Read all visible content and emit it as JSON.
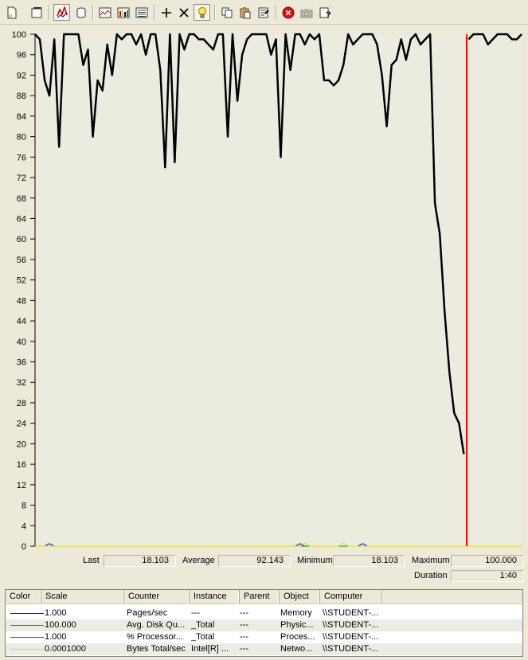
{
  "toolbar": {
    "buttons": [
      {
        "name": "new-counter-set-button",
        "icon": "new-document-icon"
      },
      {
        "name": "clear-display-button",
        "icon": "clear-display-icon"
      },
      {
        "name": "view-current-activity-button",
        "icon": "current-activity-icon",
        "pressed": true
      },
      {
        "name": "view-log-data-button",
        "icon": "database-icon"
      },
      {
        "name": "view-graph-button",
        "icon": "graph-icon"
      },
      {
        "name": "view-histogram-button",
        "icon": "histogram-icon"
      },
      {
        "name": "view-report-button",
        "icon": "report-icon"
      },
      {
        "name": "add-counter-button",
        "icon": "plus-icon"
      },
      {
        "name": "delete-counter-button",
        "icon": "x-icon"
      },
      {
        "name": "highlight-button",
        "icon": "lightbulb-icon"
      },
      {
        "name": "copy-properties-button",
        "icon": "copy-icon"
      },
      {
        "name": "paste-counter-list-button",
        "icon": "paste-icon"
      },
      {
        "name": "properties-button",
        "icon": "properties-icon"
      },
      {
        "name": "freeze-display-button",
        "icon": "stop-icon"
      },
      {
        "name": "update-data-button",
        "icon": "camera-icon"
      },
      {
        "name": "help-button",
        "icon": "help-icon"
      }
    ]
  },
  "chart_data": {
    "type": "line",
    "title": "",
    "xlabel": "",
    "ylabel": "",
    "ylim": [
      0,
      100
    ],
    "y_ticks": [
      100,
      96,
      92,
      88,
      84,
      80,
      76,
      72,
      68,
      64,
      60,
      56,
      52,
      48,
      44,
      40,
      36,
      32,
      28,
      24,
      20,
      16,
      12,
      8,
      4,
      0
    ],
    "grid": false,
    "current_position_index": 92,
    "series": [
      {
        "color": "#000000",
        "values": [
          100,
          99,
          91,
          88,
          99,
          78,
          100,
          100,
          100,
          100,
          94,
          97,
          80,
          91,
          89,
          98,
          92,
          100,
          99,
          100,
          100,
          98,
          100,
          96,
          100,
          100,
          93,
          74,
          100,
          75,
          100,
          97,
          100,
          100,
          99,
          99,
          98,
          97,
          100,
          100,
          80,
          100,
          87,
          96,
          99,
          100,
          100,
          100,
          100,
          96,
          99,
          76,
          100,
          93,
          100,
          100,
          98,
          100,
          99,
          100,
          91,
          91,
          90,
          91,
          94,
          100,
          98,
          99,
          100,
          100,
          100,
          98,
          92,
          82,
          94,
          95,
          99,
          95,
          99,
          100,
          98,
          99,
          100,
          67,
          61,
          46,
          34,
          26,
          24,
          18,
          99,
          100,
          100,
          100,
          98,
          99,
          100,
          100,
          100,
          99,
          99,
          100
        ]
      },
      {
        "color": "#0000ff",
        "values": [
          0,
          0,
          0,
          0.5,
          0,
          0,
          0,
          0,
          0,
          0,
          0,
          0,
          0,
          0,
          0,
          0,
          0,
          0,
          0,
          0,
          0,
          0,
          0,
          0,
          0,
          0,
          0,
          0,
          0,
          0,
          0,
          0,
          0,
          0,
          0,
          0,
          0,
          0,
          0,
          0,
          0,
          0,
          0,
          0,
          0,
          0,
          0,
          0,
          0,
          0,
          0,
          0,
          0,
          0,
          0,
          0.5,
          0,
          0,
          0,
          0,
          0,
          0,
          0,
          0,
          0,
          0,
          0,
          0,
          0.5,
          0,
          0,
          0,
          0,
          0,
          0,
          0,
          0,
          0,
          0,
          0,
          0,
          0,
          0,
          0,
          0,
          0,
          0,
          0,
          0,
          0,
          0,
          0,
          0,
          0,
          0,
          0,
          0,
          0,
          0,
          0,
          0,
          0
        ]
      },
      {
        "color": "#00a000",
        "values": [
          0,
          0,
          0,
          0,
          0,
          0,
          0,
          0,
          0,
          0,
          0,
          0,
          0,
          0,
          0,
          0,
          0,
          0,
          0,
          0,
          0,
          0,
          0,
          0,
          0,
          0,
          0,
          0,
          0,
          0,
          0,
          0,
          0,
          0,
          0,
          0,
          0,
          0,
          0,
          0,
          0,
          0,
          0,
          0,
          0,
          0,
          0,
          0,
          0,
          0,
          0,
          0,
          0,
          0,
          0,
          0,
          0,
          0,
          0,
          0,
          0,
          0,
          0,
          0,
          0,
          0,
          0,
          0,
          0,
          0,
          0,
          0,
          0,
          0,
          0,
          0,
          0,
          0,
          0,
          0,
          0,
          0,
          0,
          0,
          0,
          0,
          0,
          0,
          0,
          0,
          0,
          0,
          0,
          0,
          0,
          0,
          0,
          0,
          0,
          0,
          0,
          0
        ]
      },
      {
        "color": "#ff0000",
        "values": [
          100,
          99,
          91,
          88,
          99,
          78,
          100,
          100,
          100,
          100,
          94,
          97,
          80,
          91,
          89,
          98,
          92,
          100,
          99,
          100,
          100,
          98,
          100,
          96,
          100,
          100,
          93,
          74,
          100,
          75,
          100,
          97,
          100,
          100,
          99,
          99,
          98,
          97,
          100,
          100,
          80,
          100,
          87,
          96,
          99,
          100,
          100,
          100,
          100,
          96,
          99,
          76,
          100,
          93,
          100,
          100,
          98,
          100,
          99,
          100,
          91,
          91,
          90,
          91,
          94,
          100,
          98,
          99,
          100,
          100,
          100,
          98,
          92,
          82,
          94,
          95,
          99,
          95,
          99,
          100,
          98,
          99,
          100,
          67,
          61,
          46,
          34,
          26,
          24,
          18,
          99,
          100,
          100,
          100,
          98,
          99,
          100,
          100,
          100,
          99,
          99,
          100
        ]
      },
      {
        "color": "#e0e000",
        "values": [
          0,
          0,
          0,
          0,
          0,
          0,
          0,
          0,
          0,
          0,
          0,
          0,
          0,
          0,
          0,
          0,
          0,
          0,
          0,
          0,
          0,
          0,
          0,
          0,
          0,
          0,
          0,
          0,
          0,
          0,
          0,
          0,
          0,
          0,
          0,
          0,
          0,
          0,
          0,
          0,
          0,
          0,
          0,
          0,
          0,
          0,
          0,
          0,
          0,
          0,
          0,
          0,
          0,
          0,
          0,
          0,
          0.6,
          0,
          0,
          0,
          0,
          0,
          0,
          0,
          0.6,
          0,
          0,
          0,
          0,
          0,
          0,
          0,
          0,
          0,
          0,
          0,
          0,
          0,
          0,
          0,
          0,
          0,
          0,
          0,
          0,
          0,
          0,
          0,
          0,
          0,
          0,
          0,
          0,
          0,
          0,
          0,
          0,
          0,
          0,
          0,
          0,
          0
        ]
      }
    ]
  },
  "value_bar": {
    "last_label": "Last",
    "last_value": "18.103",
    "average_label": "Average",
    "average_value": "92.143",
    "minimum_label": "Minimum",
    "minimum_value": "18.103",
    "maximum_label": "Maximum",
    "maximum_value": "100.000",
    "duration_label": "Duration",
    "duration_value": "1:40"
  },
  "legend": {
    "headers": [
      "Color",
      "Scale",
      "Counter",
      "Instance",
      "Parent",
      "Object",
      "Computer"
    ],
    "rows": [
      {
        "color": "#0000ff",
        "scale": "1.000",
        "counter": "Pages/sec",
        "instance": "---",
        "parent": "---",
        "object": "Memory",
        "computer": "\\\\STUDENT-..."
      },
      {
        "color": "#00a000",
        "scale": "100.000",
        "counter": "Avg. Disk Qu...",
        "instance": "_Total",
        "parent": "---",
        "object": "Physic...",
        "computer": "\\\\STUDENT-..."
      },
      {
        "color": "#ff0000",
        "scale": "1.000",
        "counter": "% Processor...",
        "instance": "_Total",
        "parent": "---",
        "object": "Proces...",
        "computer": "\\\\STUDENT-..."
      },
      {
        "color": "#e0e000",
        "scale": "0.0001000",
        "counter": "Bytes Total/sec",
        "instance": "Intel[R] ...",
        "parent": "---",
        "object": "Netwo...",
        "computer": "\\\\STUDENT-..."
      }
    ]
  }
}
